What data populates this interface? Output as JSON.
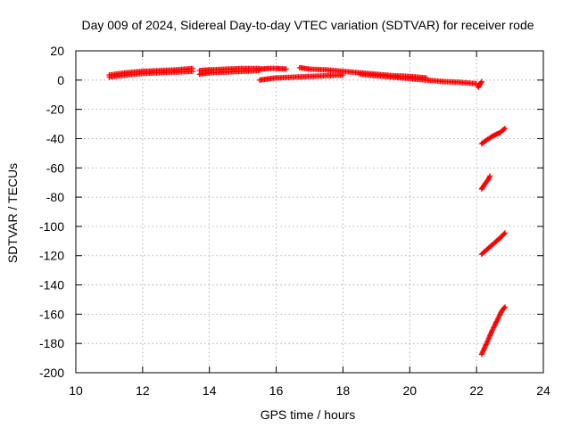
{
  "chart_data": {
    "type": "scatter",
    "title": "Day 009 of 2024, Sidereal Day-to-day VTEC variation (SDTVAR) for receiver rode",
    "xlabel": "GPS time / hours",
    "ylabel": "SDTVAR / TECUs",
    "xlim": [
      10,
      24
    ],
    "ylim": [
      -200,
      20
    ],
    "xticks": [
      10,
      12,
      14,
      16,
      18,
      20,
      22,
      24
    ],
    "yticks": [
      20,
      0,
      -20,
      -40,
      -60,
      -80,
      -100,
      -120,
      -140,
      -160,
      -180,
      -200
    ],
    "grid": true,
    "marker": "plus",
    "color": "#ff0000",
    "series": [
      {
        "segments": [
          [
            [
              11.0,
              2.0
            ],
            [
              11.5,
              3.5
            ],
            [
              12.0,
              4.5
            ],
            [
              12.5,
              5.0
            ],
            [
              13.0,
              5.5
            ],
            [
              13.5,
              6.0
            ]
          ],
          [
            [
              11.0,
              3.5
            ],
            [
              11.5,
              5.0
            ],
            [
              12.0,
              6.0
            ],
            [
              12.5,
              6.5
            ],
            [
              13.0,
              7.0
            ],
            [
              13.5,
              8.0
            ]
          ],
          [
            [
              13.7,
              4.0
            ],
            [
              14.0,
              5.0
            ],
            [
              14.5,
              5.5
            ],
            [
              15.0,
              6.0
            ],
            [
              15.5,
              6.5
            ]
          ],
          [
            [
              13.7,
              6.5
            ],
            [
              14.0,
              7.0
            ],
            [
              14.5,
              7.5
            ],
            [
              15.0,
              8.0
            ],
            [
              15.5,
              8.0
            ]
          ],
          [
            [
              15.5,
              7.5
            ],
            [
              15.8,
              8.0
            ],
            [
              16.0,
              8.0
            ],
            [
              16.3,
              7.5
            ]
          ],
          [
            [
              15.5,
              0.0
            ],
            [
              15.8,
              1.0
            ],
            [
              16.0,
              1.5
            ],
            [
              16.5,
              2.0
            ],
            [
              17.0,
              2.5
            ],
            [
              17.5,
              3.0
            ],
            [
              18.0,
              3.5
            ]
          ],
          [
            [
              16.7,
              8.5
            ],
            [
              17.0,
              7.5
            ],
            [
              17.5,
              7.0
            ],
            [
              18.0,
              6.0
            ],
            [
              18.5,
              5.0
            ],
            [
              19.0,
              4.0
            ],
            [
              19.5,
              3.0
            ],
            [
              20.0,
              2.5
            ],
            [
              20.5,
              1.5
            ]
          ],
          [
            [
              18.5,
              4.0
            ],
            [
              19.0,
              3.0
            ],
            [
              19.5,
              2.0
            ],
            [
              20.0,
              1.0
            ],
            [
              20.5,
              0.0
            ],
            [
              21.0,
              -1.0
            ],
            [
              21.5,
              -1.5
            ],
            [
              22.0,
              -2.5
            ]
          ],
          [
            [
              22.05,
              -5.0
            ],
            [
              22.1,
              -3.0
            ],
            [
              22.15,
              -1.0
            ]
          ],
          [
            [
              22.15,
              -43.5
            ],
            [
              22.3,
              -41.0
            ],
            [
              22.5,
              -38.0
            ],
            [
              22.7,
              -36.0
            ],
            [
              22.85,
              -33.0
            ]
          ],
          [
            [
              22.15,
              -74.5
            ],
            [
              22.25,
              -71.0
            ],
            [
              22.35,
              -68.0
            ],
            [
              22.4,
              -65.5
            ]
          ],
          [
            [
              22.15,
              -119.0
            ],
            [
              22.3,
              -116.0
            ],
            [
              22.5,
              -112.0
            ],
            [
              22.7,
              -108.0
            ],
            [
              22.85,
              -104.5
            ]
          ],
          [
            [
              22.15,
              -187.5
            ],
            [
              22.3,
              -180.0
            ],
            [
              22.45,
              -172.0
            ],
            [
              22.6,
              -165.0
            ],
            [
              22.75,
              -158.0
            ],
            [
              22.85,
              -155.0
            ]
          ]
        ]
      }
    ]
  }
}
